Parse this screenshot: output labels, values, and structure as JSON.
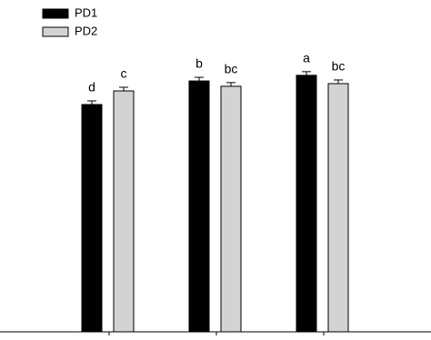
{
  "chart_data": {
    "type": "bar",
    "categories": [
      null,
      null,
      null
    ],
    "series": [
      {
        "name": "PD1",
        "color": "#000000",
        "values": [
          68.5,
          75.6,
          77.3
        ],
        "errors": [
          1.1,
          1.1,
          1.1
        ],
        "labels": [
          "d",
          "b",
          "a"
        ]
      },
      {
        "name": "PD2",
        "color": "#d3d3d3",
        "values": [
          72.6,
          74.0,
          74.8
        ],
        "errors": [
          1.1,
          1.1,
          1.1
        ],
        "labels": [
          "c",
          "bc",
          "bc"
        ]
      }
    ],
    "ylim": [
      0,
      100
    ],
    "legend": "upper-left"
  }
}
